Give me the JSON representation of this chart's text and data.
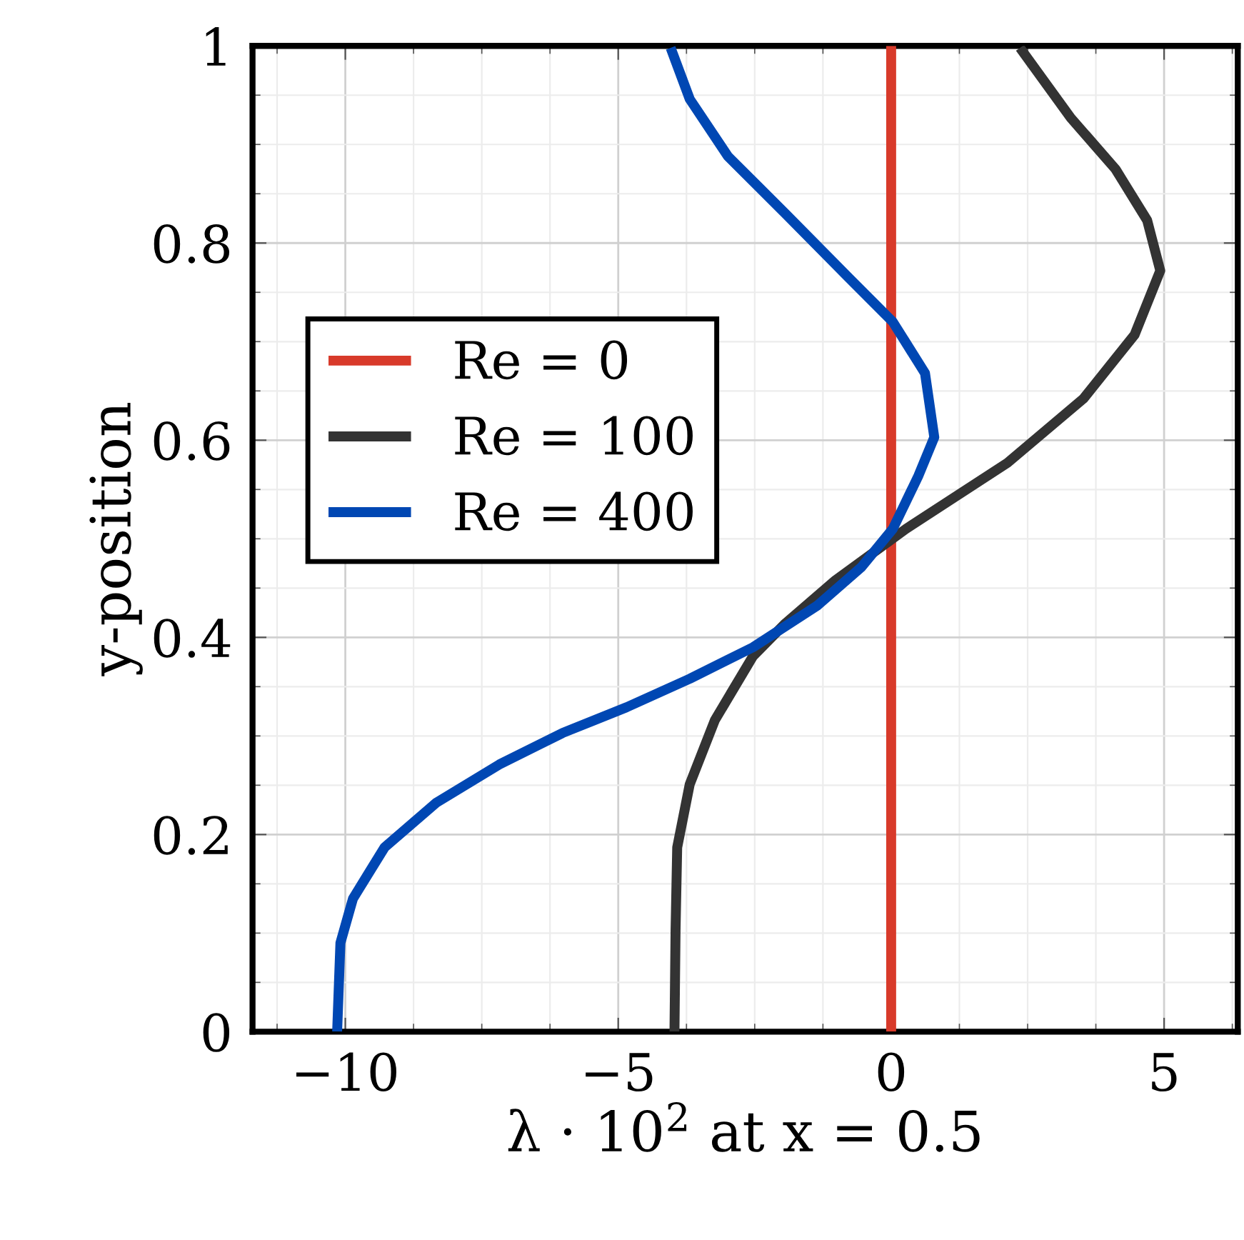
{
  "chart_data": {
    "type": "line",
    "xlabel": "λ · 10$^{2}$ at x = 0.5",
    "ylabel": "y-position",
    "xlim": [
      -11.7,
      6.35
    ],
    "ylim": [
      0,
      1
    ],
    "xticks": [
      {
        "value": -10,
        "label": "−10"
      },
      {
        "value": -5,
        "label": "−5"
      },
      0,
      5
    ],
    "yticks": [
      0,
      0.2,
      0.4,
      0.6,
      0.8,
      1
    ],
    "grid": true,
    "legend": "left",
    "line_style": "solid",
    "marker": "none",
    "series": [
      {
        "name": "Re = 0",
        "color": "#d83a2a",
        "x": [
          0,
          0
        ],
        "values": [
          0,
          1
        ]
      },
      {
        "name": "Re = 100",
        "color": "#333333",
        "x": [
          -3.97,
          -3.95,
          -3.92,
          -3.69,
          -3.23,
          -2.53,
          -1.96,
          -1.02,
          0.27,
          2.13,
          3.52,
          4.46,
          4.93,
          4.69,
          4.11,
          3.29,
          2.36
        ],
        "values": [
          0,
          0.103,
          0.187,
          0.251,
          0.316,
          0.381,
          0.413,
          0.458,
          0.51,
          0.577,
          0.642,
          0.707,
          0.772,
          0.823,
          0.875,
          0.927,
          0.998
        ]
      },
      {
        "name": "Re = 400",
        "color": "#0047b3",
        "x": [
          -10.15,
          -10.09,
          -9.86,
          -9.28,
          -8.34,
          -7.18,
          -6.02,
          -4.85,
          -3.69,
          -2.53,
          -1.36,
          -0.55,
          0.03,
          0.5,
          0.79,
          0.62,
          0.03,
          -0.78,
          -1.94,
          -2.99,
          -3.69,
          -4.04
        ],
        "values": [
          0,
          0.09,
          0.135,
          0.187,
          0.232,
          0.271,
          0.303,
          0.329,
          0.358,
          0.39,
          0.432,
          0.471,
          0.51,
          0.564,
          0.603,
          0.668,
          0.72,
          0.765,
          0.83,
          0.888,
          0.946,
          0.998
        ]
      }
    ]
  }
}
